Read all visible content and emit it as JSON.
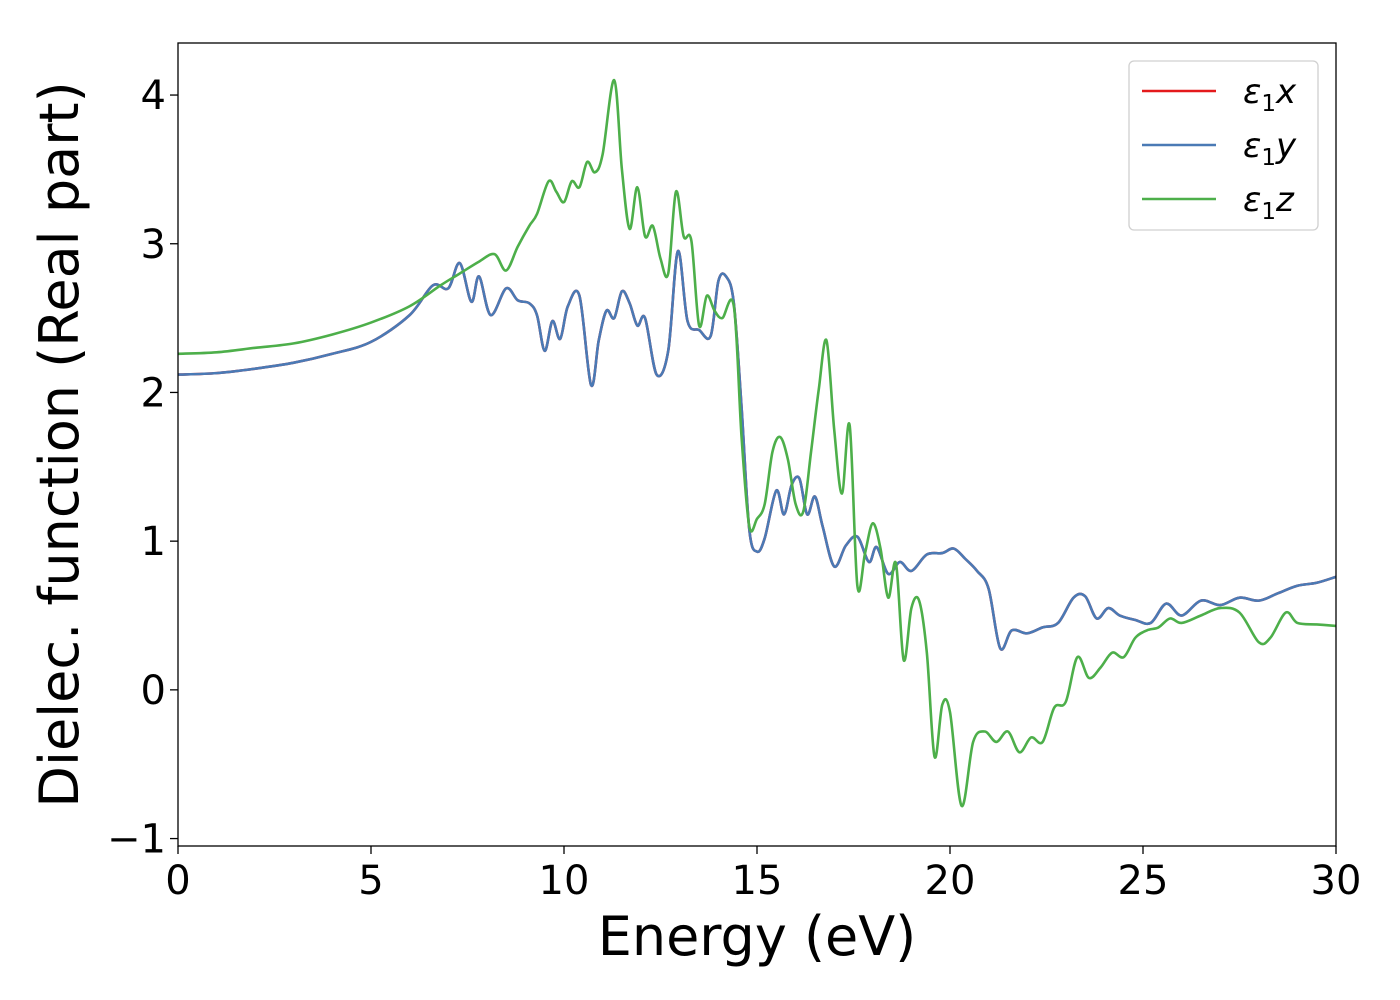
{
  "chart_data": {
    "type": "line",
    "title": "",
    "xlabel": "Energy (eV)",
    "ylabel": "Dielec. function (Real part)",
    "xlim": [
      0,
      30
    ],
    "ylim": [
      -1.05,
      4.35
    ],
    "xticks": [
      0,
      5,
      10,
      15,
      20,
      25,
      30
    ],
    "xtick_labels": [
      "0",
      "5",
      "10",
      "15",
      "20",
      "25",
      "30"
    ],
    "yticks": [
      -1,
      0,
      1,
      2,
      3,
      4
    ],
    "ytick_labels": [
      "−1",
      "0",
      "1",
      "2",
      "3",
      "4"
    ],
    "grid": false,
    "legend_position": "top-right",
    "series": [
      {
        "key": "x",
        "label_base": "ε",
        "label_sub": "1",
        "label_var": "x",
        "color": "#e41a1c",
        "x": [
          0,
          1,
          2,
          3,
          4,
          5,
          6,
          6.6,
          7,
          7.3,
          7.6,
          7.8,
          8.1,
          8.5,
          8.8,
          9.1,
          9.3,
          9.5,
          9.7,
          9.9,
          10.1,
          10.4,
          10.7,
          10.9,
          11.1,
          11.3,
          11.5,
          11.7,
          11.9,
          12.1,
          12.4,
          12.7,
          12.95,
          13.2,
          13.5,
          13.8,
          14.0,
          14.2,
          14.4,
          14.6,
          14.8,
          15.0,
          15.2,
          15.5,
          15.7,
          15.9,
          16.1,
          16.3,
          16.5,
          16.7,
          17.0,
          17.3,
          17.6,
          17.9,
          18.1,
          18.4,
          18.7,
          19.0,
          19.4,
          19.8,
          20.1,
          20.4,
          20.7,
          21.0,
          21.3,
          21.6,
          22.0,
          22.4,
          22.8,
          23.2,
          23.5,
          23.8,
          24.1,
          24.4,
          24.8,
          25.2,
          25.6,
          26.0,
          26.5,
          27.0,
          27.5,
          28.0,
          28.5,
          29.0,
          29.5,
          30.0
        ],
        "y": [
          2.12,
          2.13,
          2.16,
          2.2,
          2.26,
          2.34,
          2.52,
          2.72,
          2.7,
          2.87,
          2.61,
          2.78,
          2.52,
          2.7,
          2.62,
          2.6,
          2.52,
          2.28,
          2.48,
          2.36,
          2.58,
          2.65,
          2.05,
          2.35,
          2.55,
          2.5,
          2.68,
          2.6,
          2.45,
          2.5,
          2.12,
          2.28,
          2.95,
          2.48,
          2.42,
          2.38,
          2.75,
          2.78,
          2.6,
          1.9,
          1.08,
          0.93,
          1.02,
          1.34,
          1.18,
          1.38,
          1.42,
          1.18,
          1.3,
          1.1,
          0.83,
          0.97,
          1.03,
          0.86,
          0.96,
          0.78,
          0.86,
          0.8,
          0.91,
          0.92,
          0.95,
          0.88,
          0.8,
          0.68,
          0.28,
          0.4,
          0.38,
          0.42,
          0.45,
          0.62,
          0.63,
          0.48,
          0.55,
          0.5,
          0.47,
          0.45,
          0.58,
          0.5,
          0.6,
          0.57,
          0.62,
          0.6,
          0.65,
          0.7,
          0.72,
          0.76
        ]
      },
      {
        "key": "y",
        "label_base": "ε",
        "label_sub": "1",
        "label_var": "y",
        "color": "#4a7ab5",
        "x": [
          0,
          1,
          2,
          3,
          4,
          5,
          6,
          6.6,
          7,
          7.3,
          7.6,
          7.8,
          8.1,
          8.5,
          8.8,
          9.1,
          9.3,
          9.5,
          9.7,
          9.9,
          10.1,
          10.4,
          10.7,
          10.9,
          11.1,
          11.3,
          11.5,
          11.7,
          11.9,
          12.1,
          12.4,
          12.7,
          12.95,
          13.2,
          13.5,
          13.8,
          14.0,
          14.2,
          14.4,
          14.6,
          14.8,
          15.0,
          15.2,
          15.5,
          15.7,
          15.9,
          16.1,
          16.3,
          16.5,
          16.7,
          17.0,
          17.3,
          17.6,
          17.9,
          18.1,
          18.4,
          18.7,
          19.0,
          19.4,
          19.8,
          20.1,
          20.4,
          20.7,
          21.0,
          21.3,
          21.6,
          22.0,
          22.4,
          22.8,
          23.2,
          23.5,
          23.8,
          24.1,
          24.4,
          24.8,
          25.2,
          25.6,
          26.0,
          26.5,
          27.0,
          27.5,
          28.0,
          28.5,
          29.0,
          29.5,
          30.0
        ],
        "y": [
          2.12,
          2.13,
          2.16,
          2.2,
          2.26,
          2.34,
          2.52,
          2.72,
          2.7,
          2.87,
          2.61,
          2.78,
          2.52,
          2.7,
          2.62,
          2.6,
          2.52,
          2.28,
          2.48,
          2.36,
          2.58,
          2.65,
          2.05,
          2.35,
          2.55,
          2.5,
          2.68,
          2.6,
          2.45,
          2.5,
          2.12,
          2.28,
          2.95,
          2.48,
          2.42,
          2.38,
          2.75,
          2.78,
          2.6,
          1.9,
          1.08,
          0.93,
          1.02,
          1.34,
          1.18,
          1.38,
          1.42,
          1.18,
          1.3,
          1.1,
          0.83,
          0.97,
          1.03,
          0.86,
          0.96,
          0.78,
          0.86,
          0.8,
          0.91,
          0.92,
          0.95,
          0.88,
          0.8,
          0.68,
          0.28,
          0.4,
          0.38,
          0.42,
          0.45,
          0.62,
          0.63,
          0.48,
          0.55,
          0.5,
          0.47,
          0.45,
          0.58,
          0.5,
          0.6,
          0.57,
          0.62,
          0.6,
          0.65,
          0.7,
          0.72,
          0.76
        ]
      },
      {
        "key": "z",
        "label_base": "ε",
        "label_sub": "1",
        "label_var": "z",
        "color": "#4daf4a",
        "x": [
          0,
          1,
          2,
          3,
          4,
          5,
          6,
          6.8,
          7.3,
          7.8,
          8.2,
          8.5,
          8.8,
          9.1,
          9.3,
          9.6,
          9.8,
          10.0,
          10.2,
          10.4,
          10.6,
          10.8,
          11.0,
          11.3,
          11.5,
          11.7,
          11.9,
          12.1,
          12.3,
          12.5,
          12.7,
          12.9,
          13.1,
          13.3,
          13.5,
          13.7,
          13.9,
          14.1,
          14.4,
          14.6,
          14.8,
          15.0,
          15.2,
          15.4,
          15.6,
          15.8,
          16.0,
          16.2,
          16.4,
          16.6,
          16.8,
          17.0,
          17.2,
          17.4,
          17.6,
          17.8,
          18.0,
          18.2,
          18.4,
          18.6,
          18.8,
          19.0,
          19.2,
          19.4,
          19.6,
          19.8,
          20.0,
          20.3,
          20.6,
          20.9,
          21.2,
          21.5,
          21.8,
          22.1,
          22.4,
          22.7,
          23.0,
          23.3,
          23.6,
          23.9,
          24.2,
          24.5,
          24.8,
          25.1,
          25.4,
          25.7,
          26.0,
          26.5,
          27.0,
          27.5,
          28.0,
          28.3,
          28.7,
          29.0,
          29.5,
          30.0
        ],
        "y": [
          2.26,
          2.27,
          2.3,
          2.33,
          2.39,
          2.47,
          2.58,
          2.72,
          2.8,
          2.88,
          2.93,
          2.82,
          2.98,
          3.12,
          3.2,
          3.42,
          3.35,
          3.28,
          3.42,
          3.38,
          3.55,
          3.48,
          3.6,
          4.1,
          3.5,
          3.1,
          3.38,
          3.05,
          3.12,
          2.9,
          2.8,
          3.35,
          3.05,
          3.02,
          2.45,
          2.65,
          2.55,
          2.5,
          2.58,
          1.7,
          1.1,
          1.15,
          1.25,
          1.6,
          1.7,
          1.55,
          1.25,
          1.2,
          1.6,
          2.02,
          2.35,
          1.75,
          1.32,
          1.78,
          0.7,
          0.92,
          1.12,
          0.95,
          0.62,
          0.85,
          0.2,
          0.55,
          0.6,
          0.25,
          -0.45,
          -0.1,
          -0.15,
          -0.78,
          -0.35,
          -0.28,
          -0.35,
          -0.28,
          -0.42,
          -0.32,
          -0.35,
          -0.12,
          -0.08,
          0.22,
          0.08,
          0.15,
          0.25,
          0.22,
          0.35,
          0.4,
          0.42,
          0.48,
          0.45,
          0.5,
          0.55,
          0.52,
          0.32,
          0.35,
          0.52,
          0.45,
          0.44,
          0.43
        ]
      }
    ]
  }
}
